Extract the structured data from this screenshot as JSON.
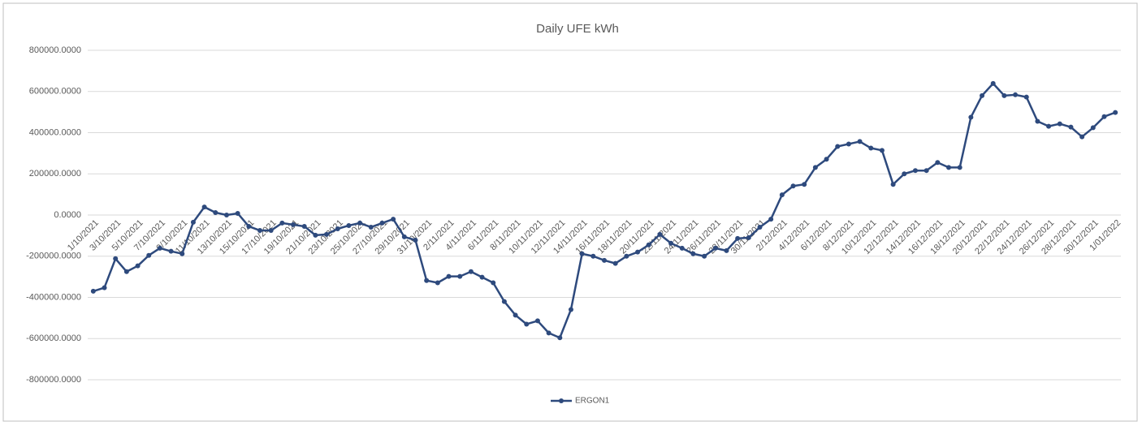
{
  "chart_data": {
    "type": "line",
    "title": "Daily UFE kWh",
    "categories": [
      "1/10/2021",
      null,
      "3/10/2021",
      null,
      "5/10/2021",
      null,
      "7/10/2021",
      null,
      "9/10/2021",
      null,
      "11/10/2021",
      null,
      "13/10/2021",
      null,
      "15/10/2021",
      null,
      "17/10/2021",
      null,
      "19/10/2021",
      null,
      "21/10/2021",
      null,
      "23/10/2021",
      null,
      "25/10/2021",
      null,
      "27/10/2021",
      null,
      "29/10/2021",
      null,
      "31/10/2021",
      null,
      "2/11/2021",
      null,
      "4/11/2021",
      null,
      "6/11/2021",
      null,
      "8/11/2021",
      null,
      "10/11/2021",
      null,
      "12/11/2021",
      null,
      "14/11/2021",
      null,
      "16/11/2021",
      null,
      "18/11/2021",
      null,
      "20/11/2021",
      null,
      "22/11/2021",
      null,
      "24/11/2021",
      null,
      "26/11/2021",
      null,
      "28/11/2021",
      null,
      "30/11/2021",
      null,
      "2/12/2021",
      null,
      "4/12/2021",
      null,
      "6/12/2021",
      null,
      "8/12/2021",
      null,
      "10/12/2021",
      null,
      "12/12/2021",
      null,
      "14/12/2021",
      null,
      "16/12/2021",
      null,
      "18/12/2021",
      null,
      "20/12/2021",
      null,
      "22/12/2021",
      null,
      "24/12/2021",
      null,
      "26/12/2021",
      null,
      "28/12/2021",
      null,
      "30/12/2021",
      null,
      "1/01/2022"
    ],
    "series": [
      {
        "name": "ERGON1",
        "color": "#2e4a7d",
        "values": [
          -370000,
          -353000,
          -212000,
          -275000,
          -247000,
          -196000,
          -161000,
          -176000,
          -188000,
          -35000,
          39000,
          12000,
          0,
          8000,
          -55000,
          -75000,
          -75000,
          -39000,
          -47000,
          -55000,
          -98000,
          -94000,
          -67000,
          -51000,
          -39000,
          -59000,
          -39000,
          -20000,
          -106000,
          -122000,
          -318000,
          -329000,
          -298000,
          -298000,
          -275000,
          -302000,
          -329000,
          -420000,
          -486000,
          -530000,
          -514000,
          -573000,
          -596000,
          -459000,
          -188000,
          -200000,
          -220000,
          -235000,
          -200000,
          -180000,
          -145000,
          -94000,
          -137000,
          -161000,
          -188000,
          -200000,
          -161000,
          -173000,
          -114000,
          -110000,
          -59000,
          -20000,
          98000,
          141000,
          149000,
          231000,
          271000,
          333000,
          345000,
          357000,
          325000,
          314000,
          149000,
          200000,
          216000,
          216000,
          255000,
          231000,
          231000,
          475000,
          580000,
          639000,
          580000,
          584000,
          573000,
          455000,
          431000,
          443000,
          427000,
          380000,
          424000,
          478000,
          498000
        ]
      }
    ],
    "ylim": [
      -800000,
      800000
    ],
    "yticks": [
      {
        "value": -800000,
        "label": "-800000.0000"
      },
      {
        "value": -600000,
        "label": "-600000.0000"
      },
      {
        "value": -400000,
        "label": "-400000.0000"
      },
      {
        "value": -200000,
        "label": "-200000.0000"
      },
      {
        "value": 0,
        "label": "0.0000"
      },
      {
        "value": 200000,
        "label": "200000.0000"
      },
      {
        "value": 400000,
        "label": "400000.0000"
      },
      {
        "value": 600000,
        "label": "600000.0000"
      },
      {
        "value": 800000,
        "label": "800000.0000"
      }
    ],
    "grid": true,
    "legend": "bottom"
  }
}
